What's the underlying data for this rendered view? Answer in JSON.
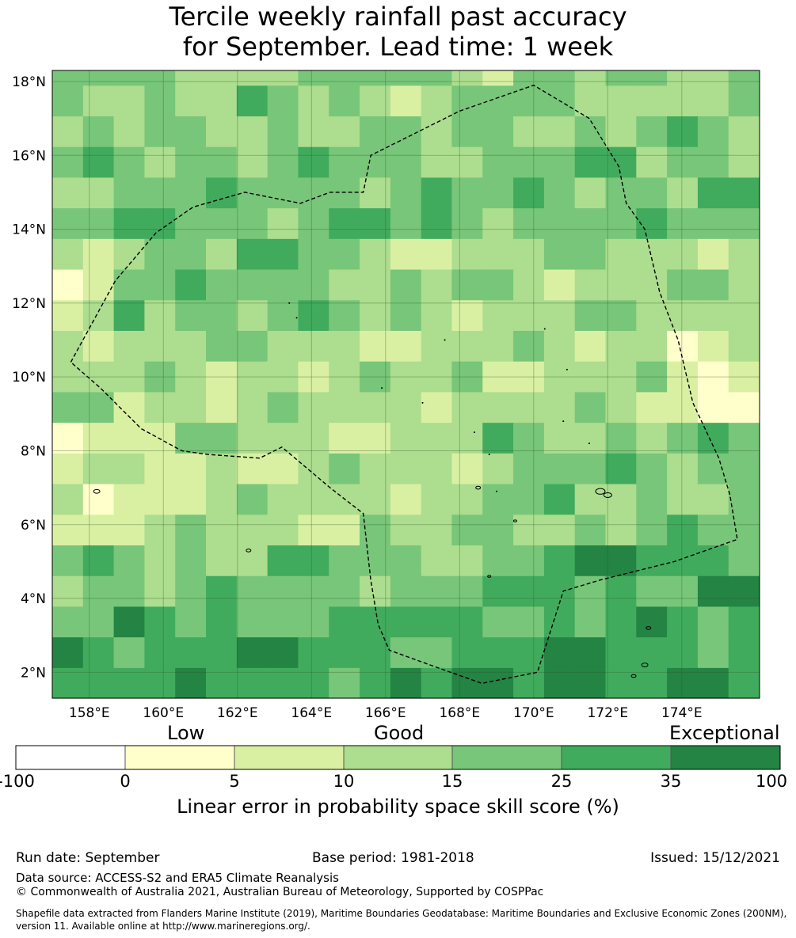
{
  "title_line1": "Tercile weekly rainfall past accuracy",
  "title_line2": "for September. Lead time: 1 week",
  "map": {
    "lon_min": 157,
    "lon_max": 176.1,
    "lat_min": 1.3,
    "lat_max": 18.3,
    "x_ticks": [
      158,
      160,
      162,
      164,
      166,
      168,
      170,
      172,
      174
    ],
    "x_tick_labels": [
      "158°E",
      "160°E",
      "162°E",
      "164°E",
      "166°E",
      "168°E",
      "170°E",
      "172°E",
      "174°E"
    ],
    "y_ticks": [
      2,
      4,
      6,
      8,
      10,
      12,
      14,
      16,
      18
    ],
    "y_tick_labels": [
      "2°N",
      "4°N",
      "6°N",
      "8°N",
      "10°N",
      "12°N",
      "14°N",
      "16°N",
      "18°N"
    ],
    "grid": true,
    "cell_size_deg": 0.83,
    "eez_boundary_lonlat": [
      [
        157.5,
        10.4
      ],
      [
        158.7,
        12.6
      ],
      [
        159.8,
        13.9
      ],
      [
        160.8,
        14.6
      ],
      [
        162.2,
        15.0
      ],
      [
        163.7,
        14.7
      ],
      [
        164.5,
        15.0
      ],
      [
        165.4,
        15.0
      ],
      [
        165.6,
        16.0
      ],
      [
        168.0,
        17.2
      ],
      [
        170.0,
        17.9
      ],
      [
        171.5,
        17.0
      ],
      [
        172.3,
        15.7
      ],
      [
        172.5,
        14.7
      ],
      [
        173.0,
        14.0
      ],
      [
        173.4,
        12.3
      ],
      [
        173.9,
        11.0
      ],
      [
        174.3,
        9.3
      ],
      [
        175.0,
        7.8
      ],
      [
        175.3,
        6.8
      ],
      [
        175.5,
        5.6
      ],
      [
        173.8,
        5.0
      ],
      [
        173.0,
        4.8
      ],
      [
        171.8,
        4.5
      ],
      [
        170.8,
        4.2
      ],
      [
        170.1,
        2.0
      ],
      [
        168.6,
        1.7
      ],
      [
        167.2,
        2.2
      ],
      [
        166.1,
        2.6
      ],
      [
        165.8,
        3.3
      ],
      [
        165.6,
        4.5
      ],
      [
        165.4,
        6.3
      ],
      [
        164.5,
        7.0
      ],
      [
        163.2,
        8.1
      ],
      [
        162.6,
        7.8
      ],
      [
        161.2,
        7.9
      ],
      [
        160.5,
        8.0
      ],
      [
        159.4,
        8.6
      ],
      [
        158.3,
        9.7
      ],
      [
        157.5,
        10.4
      ]
    ]
  },
  "colorbar": {
    "category_labels": [
      "Low",
      "Good",
      "Exceptional"
    ],
    "tick_labels": [
      "-100",
      "0",
      "5",
      "10",
      "15",
      "25",
      "35",
      "100"
    ],
    "colors": [
      "#ffffff",
      "#ffffcc",
      "#d9f0a3",
      "#addd8e",
      "#78c679",
      "#41ab5d",
      "#238443"
    ],
    "title": "Linear error in probability space skill score (%)"
  },
  "footer": {
    "run_date": "Run date: September",
    "base_period": "Base period: 1981-2018",
    "issued": "Issued: 15/12/2021",
    "data_source": "Data source: ACCESS-S2 and ERA5 Climate Reanalysis",
    "copyright": "© Commonwealth of Australia 2021, Australian Bureau of Meteorology, Supported by COSPPac",
    "shapefile_note": "Shapefile data extracted from Flanders Marine Institute (2019), Maritime Boundaries Geodatabase: Maritime Boundaries and Exclusive Economic Zones (200NM), version 11. Available online at http://www.marineregions.org/."
  }
}
